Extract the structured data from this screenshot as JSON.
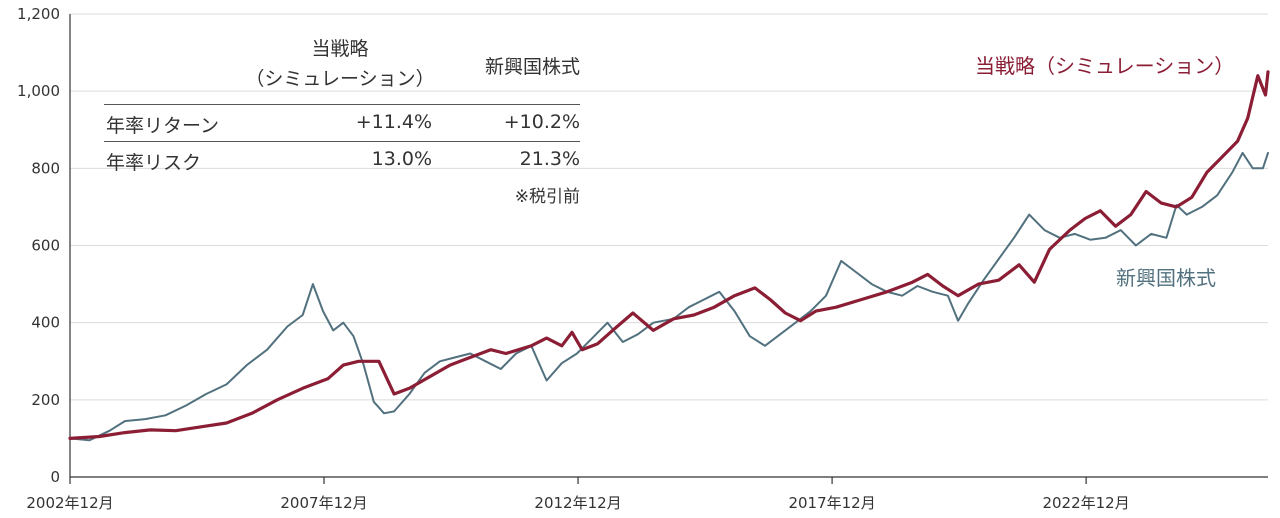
{
  "chart_data": {
    "type": "line",
    "title": "",
    "xlabel": "",
    "ylabel": "",
    "ylim": [
      0,
      1200
    ],
    "yticks": [
      0,
      200,
      400,
      600,
      800,
      1000,
      1200
    ],
    "ytick_labels": [
      "0",
      "200",
      "400",
      "600",
      "800",
      "1,000",
      "1,200"
    ],
    "xlim": [
      2002.92,
      2026.5
    ],
    "xticks": [
      2002.92,
      2007.92,
      2012.92,
      2017.92,
      2022.92
    ],
    "xtick_labels": [
      "2002年12月",
      "2007年12月",
      "2012年12月",
      "2017年12月",
      "2022年12月"
    ],
    "series": [
      {
        "name": "当戦略（シミュレーション）",
        "color": "#8b1e35",
        "points": [
          [
            2002.92,
            100
          ],
          [
            2003.5,
            105
          ],
          [
            2004.0,
            115
          ],
          [
            2004.5,
            122
          ],
          [
            2005.0,
            120
          ],
          [
            2005.5,
            130
          ],
          [
            2006.0,
            140
          ],
          [
            2006.5,
            165
          ],
          [
            2007.0,
            200
          ],
          [
            2007.5,
            230
          ],
          [
            2008.0,
            255
          ],
          [
            2008.3,
            290
          ],
          [
            2008.6,
            300
          ],
          [
            2009.0,
            300
          ],
          [
            2009.3,
            215
          ],
          [
            2009.6,
            230
          ],
          [
            2010.0,
            260
          ],
          [
            2010.4,
            290
          ],
          [
            2010.8,
            310
          ],
          [
            2011.2,
            330
          ],
          [
            2011.5,
            320
          ],
          [
            2012.0,
            340
          ],
          [
            2012.3,
            360
          ],
          [
            2012.6,
            340
          ],
          [
            2012.8,
            375
          ],
          [
            2013.0,
            330
          ],
          [
            2013.3,
            345
          ],
          [
            2013.6,
            380
          ],
          [
            2014.0,
            425
          ],
          [
            2014.4,
            380
          ],
          [
            2014.8,
            410
          ],
          [
            2015.2,
            420
          ],
          [
            2015.6,
            440
          ],
          [
            2016.0,
            470
          ],
          [
            2016.4,
            490
          ],
          [
            2016.7,
            460
          ],
          [
            2017.0,
            425
          ],
          [
            2017.3,
            405
          ],
          [
            2017.6,
            430
          ],
          [
            2018.0,
            440
          ],
          [
            2018.5,
            460
          ],
          [
            2019.0,
            480
          ],
          [
            2019.5,
            505
          ],
          [
            2019.8,
            525
          ],
          [
            2020.1,
            495
          ],
          [
            2020.4,
            470
          ],
          [
            2020.8,
            500
          ],
          [
            2021.2,
            510
          ],
          [
            2021.6,
            550
          ],
          [
            2021.9,
            505
          ],
          [
            2022.2,
            590
          ],
          [
            2022.6,
            640
          ],
          [
            2022.9,
            670
          ],
          [
            2023.2,
            690
          ],
          [
            2023.5,
            650
          ],
          [
            2023.8,
            680
          ],
          [
            2024.1,
            740
          ],
          [
            2024.4,
            710
          ],
          [
            2024.7,
            700
          ],
          [
            2025.0,
            725
          ],
          [
            2025.3,
            790
          ],
          [
            2025.6,
            830
          ],
          [
            2025.9,
            870
          ],
          [
            2026.1,
            930
          ],
          [
            2026.3,
            1040
          ],
          [
            2026.45,
            990
          ],
          [
            2026.5,
            1050
          ]
        ]
      },
      {
        "name": "新興国株式",
        "color": "#52717f",
        "points": [
          [
            2002.92,
            100
          ],
          [
            2003.3,
            95
          ],
          [
            2003.7,
            120
          ],
          [
            2004.0,
            145
          ],
          [
            2004.4,
            150
          ],
          [
            2004.8,
            160
          ],
          [
            2005.2,
            185
          ],
          [
            2005.6,
            215
          ],
          [
            2006.0,
            240
          ],
          [
            2006.4,
            290
          ],
          [
            2006.8,
            330
          ],
          [
            2007.2,
            390
          ],
          [
            2007.5,
            420
          ],
          [
            2007.7,
            500
          ],
          [
            2007.9,
            430
          ],
          [
            2008.1,
            380
          ],
          [
            2008.3,
            400
          ],
          [
            2008.5,
            365
          ],
          [
            2008.7,
            290
          ],
          [
            2008.9,
            195
          ],
          [
            2009.1,
            165
          ],
          [
            2009.3,
            170
          ],
          [
            2009.6,
            215
          ],
          [
            2009.9,
            270
          ],
          [
            2010.2,
            300
          ],
          [
            2010.5,
            310
          ],
          [
            2010.8,
            320
          ],
          [
            2011.1,
            300
          ],
          [
            2011.4,
            280
          ],
          [
            2011.7,
            320
          ],
          [
            2012.0,
            340
          ],
          [
            2012.3,
            250
          ],
          [
            2012.6,
            295
          ],
          [
            2012.9,
            320
          ],
          [
            2013.2,
            360
          ],
          [
            2013.5,
            400
          ],
          [
            2013.8,
            350
          ],
          [
            2014.1,
            370
          ],
          [
            2014.4,
            400
          ],
          [
            2014.8,
            410
          ],
          [
            2015.1,
            440
          ],
          [
            2015.4,
            460
          ],
          [
            2015.7,
            480
          ],
          [
            2016.0,
            430
          ],
          [
            2016.3,
            365
          ],
          [
            2016.6,
            340
          ],
          [
            2016.9,
            370
          ],
          [
            2017.2,
            400
          ],
          [
            2017.5,
            430
          ],
          [
            2017.8,
            470
          ],
          [
            2018.1,
            560
          ],
          [
            2018.4,
            530
          ],
          [
            2018.7,
            500
          ],
          [
            2019.0,
            480
          ],
          [
            2019.3,
            470
          ],
          [
            2019.6,
            495
          ],
          [
            2019.9,
            480
          ],
          [
            2020.2,
            470
          ],
          [
            2020.4,
            405
          ],
          [
            2020.6,
            450
          ],
          [
            2020.9,
            510
          ],
          [
            2021.2,
            565
          ],
          [
            2021.5,
            620
          ],
          [
            2021.8,
            680
          ],
          [
            2022.1,
            640
          ],
          [
            2022.4,
            620
          ],
          [
            2022.7,
            630
          ],
          [
            2023.0,
            615
          ],
          [
            2023.3,
            620
          ],
          [
            2023.6,
            640
          ],
          [
            2023.9,
            600
          ],
          [
            2024.2,
            630
          ],
          [
            2024.5,
            620
          ],
          [
            2024.7,
            705
          ],
          [
            2024.9,
            680
          ],
          [
            2025.2,
            700
          ],
          [
            2025.5,
            730
          ],
          [
            2025.8,
            790
          ],
          [
            2026.0,
            840
          ],
          [
            2026.2,
            800
          ],
          [
            2026.4,
            800
          ],
          [
            2026.5,
            840
          ]
        ]
      }
    ]
  },
  "stats_table": {
    "header_strategy_line1": "当戦略",
    "header_strategy_line2": "（シミュレーション）",
    "header_em": "新興国株式",
    "rows": [
      {
        "label": "年率リターン",
        "strategy": "+11.4%",
        "em": "+10.2%"
      },
      {
        "label": "年率リスク",
        "strategy": "13.0%",
        "em": "21.3%"
      }
    ],
    "note": "※税引前"
  },
  "series_labels": {
    "strategy": "当戦略（シミュレーション）",
    "em": "新興国株式"
  }
}
